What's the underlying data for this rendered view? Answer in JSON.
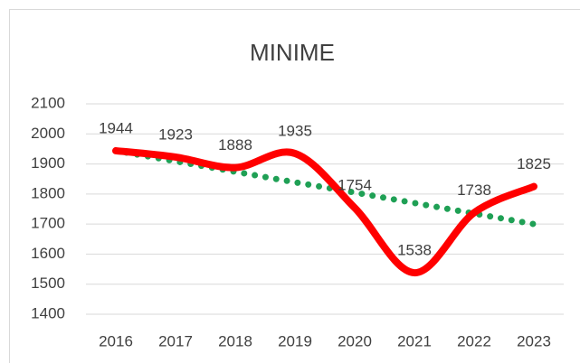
{
  "chart_data": {
    "type": "line",
    "title": "MINIME",
    "categories": [
      "2016",
      "2017",
      "2018",
      "2019",
      "2020",
      "2021",
      "2022",
      "2023"
    ],
    "series": [
      {
        "color": "#ff0000",
        "values": [
          1944,
          1923,
          1888,
          1935,
          1754,
          1538,
          1738,
          1825
        ]
      }
    ],
    "trendline": {
      "color": "#1fa055",
      "values": [
        1944,
        1909,
        1874,
        1839,
        1805,
        1770,
        1735,
        1700
      ]
    },
    "ylim": [
      1400,
      2100
    ],
    "yticks": [
      1400,
      1500,
      1600,
      1700,
      1800,
      1900,
      2000,
      2100
    ],
    "grid": true,
    "smooth": true,
    "data_labels": true
  }
}
